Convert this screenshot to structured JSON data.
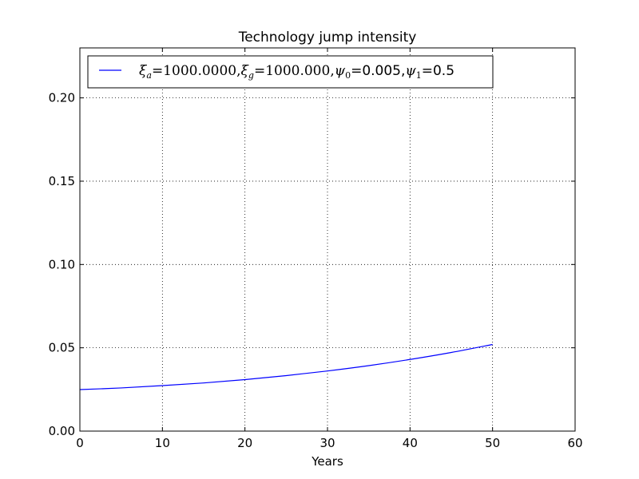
{
  "chart_data": {
    "type": "line",
    "title": "Technology jump intensity",
    "xlabel": "Years",
    "ylabel": "",
    "xlim": [
      0,
      60
    ],
    "ylim": [
      0,
      0.23
    ],
    "xticks": [
      0,
      10,
      20,
      30,
      40,
      50,
      60
    ],
    "xtick_labels": [
      "0",
      "10",
      "20",
      "30",
      "40",
      "50",
      "60"
    ],
    "yticks": [
      0,
      0.05,
      0.1,
      0.15,
      0.2
    ],
    "ytick_labels": [
      "0.00",
      "0.05",
      "0.10",
      "0.15",
      "0.20"
    ],
    "grid": true,
    "legend_position": "top-left",
    "series": [
      {
        "name": "ξa = 1000.0000, ξg = 1000.000, ψ0 = 0.005, ψ1 = 0.5",
        "color": "#0000ff",
        "x": [
          0,
          5,
          10,
          15,
          20,
          25,
          30,
          35,
          40,
          45,
          50
        ],
        "y": [
          0.0249,
          0.0259,
          0.0273,
          0.0289,
          0.0309,
          0.0333,
          0.0361,
          0.0393,
          0.043,
          0.0472,
          0.052
        ]
      }
    ],
    "legend_parts": {
      "xi_a": "ξ",
      "sub_a": "a",
      "val_a": "=1000.0000,",
      "xi_g": "ξ",
      "sub_g": "g",
      "val_g": "=1000.000,",
      "psi0": "ψ",
      "sub_0": "0",
      "eq0": "=",
      "val_0": "0.005,",
      "psi1": "ψ",
      "sub_1": "1",
      "eq1": "=",
      "val_1": "0.5"
    }
  }
}
